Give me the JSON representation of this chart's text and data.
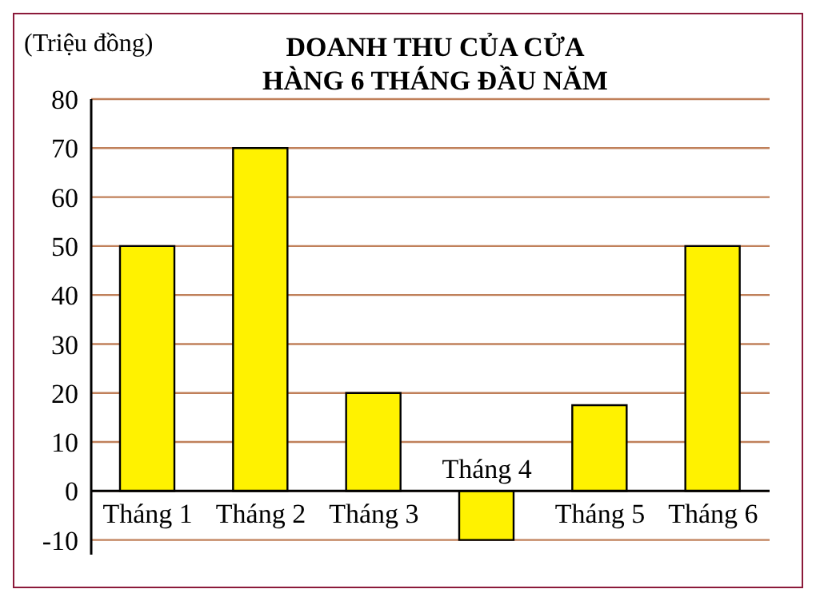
{
  "chart_data": {
    "type": "bar",
    "title": "DOANH THU CỦA CỬA\nHÀNG 6 THÁNG ĐẦU NĂM",
    "ylabel": "(Triệu đồng)",
    "categories": [
      "Tháng 1",
      "Tháng 2",
      "Tháng 3",
      "Tháng 4",
      "Tháng 5",
      "Tháng 6"
    ],
    "values": [
      50,
      70,
      20,
      -10,
      17.5,
      50
    ],
    "color": "#fff200",
    "ylim": [
      -13,
      80
    ],
    "yticks": [
      -10,
      0,
      10,
      20,
      30,
      40,
      50,
      60,
      70,
      80
    ],
    "grid": "y"
  }
}
